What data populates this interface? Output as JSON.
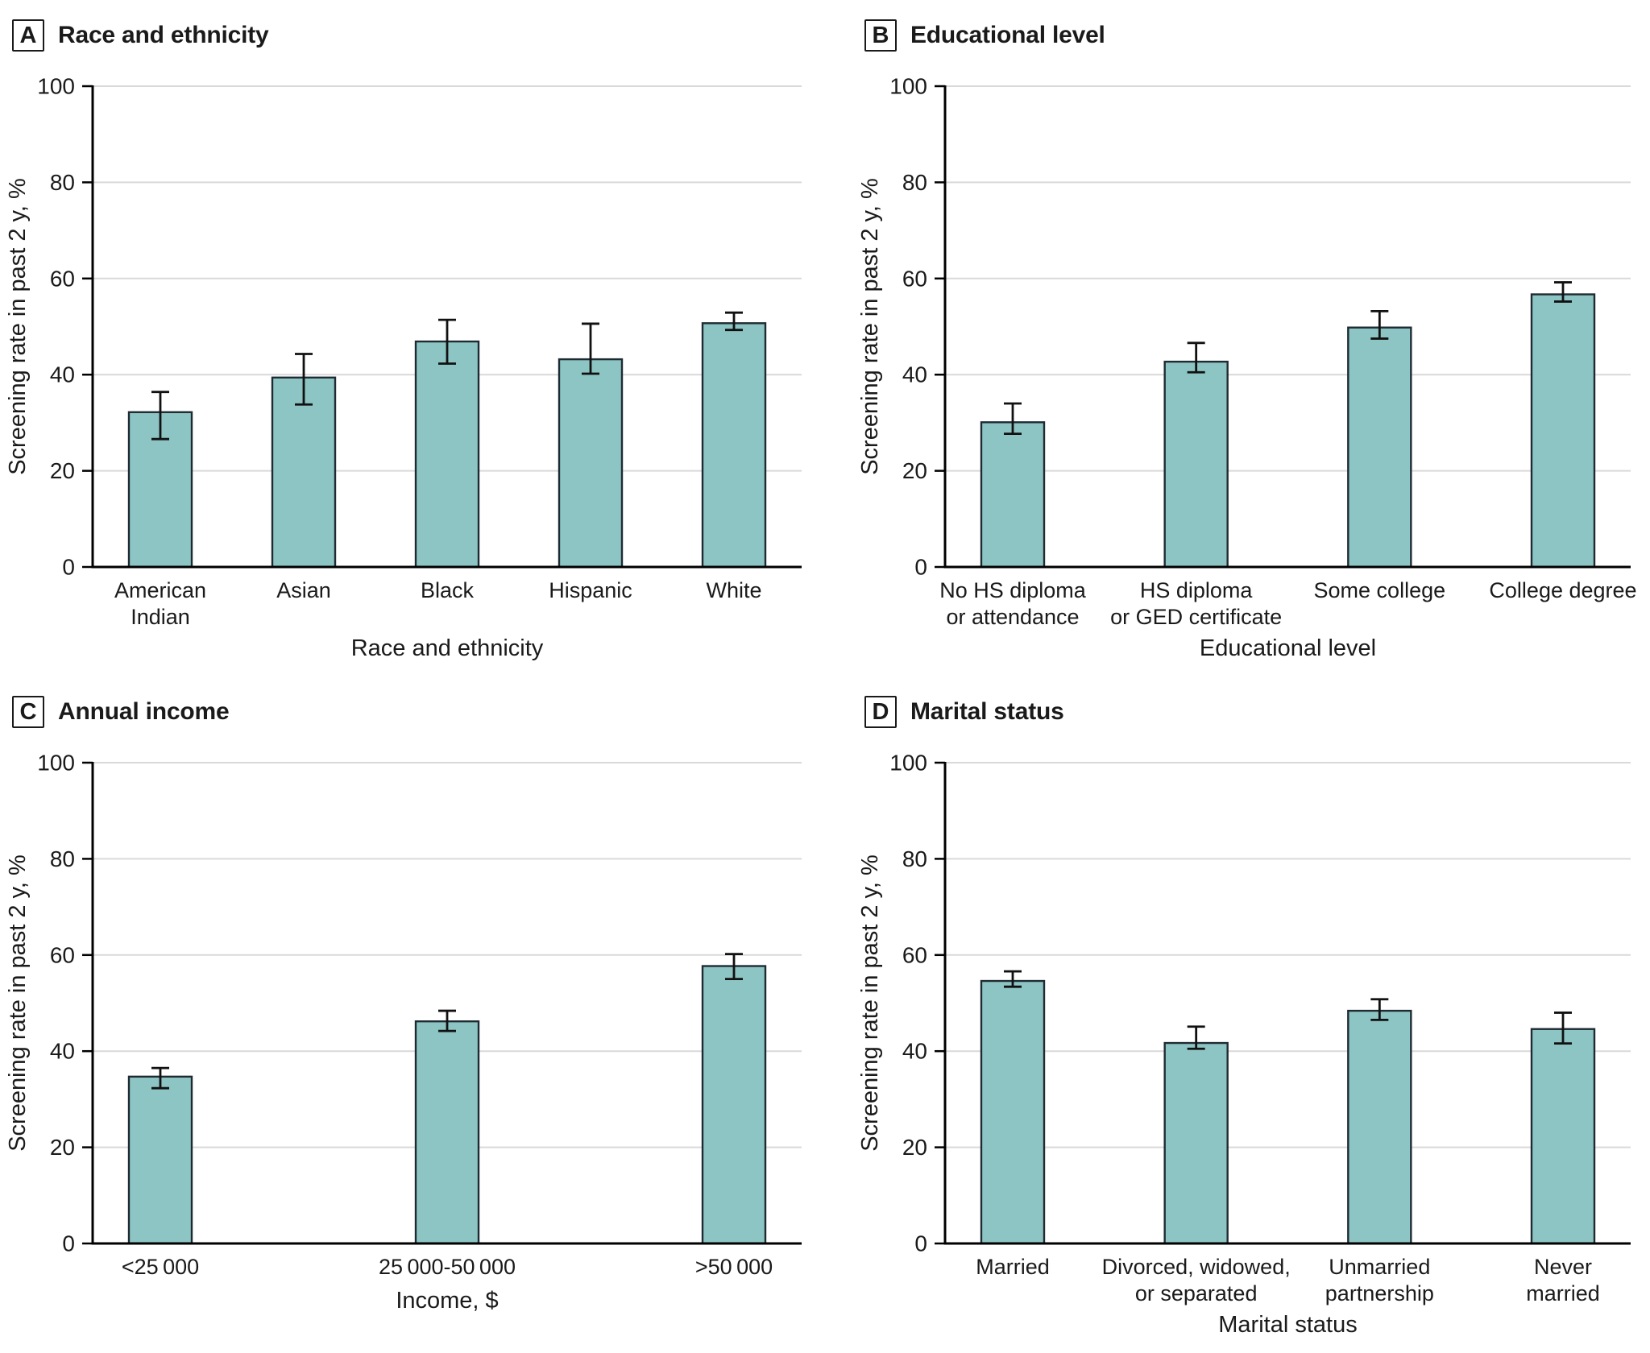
{
  "figure": {
    "background": "#FFFFFF",
    "shared_y_axis_title": "Screening rate in past 2 y, %"
  },
  "colors": {
    "bar_fill": "#8CC5C3",
    "bar_stroke": "#1F2B33",
    "error_bar": "#111111",
    "gridline": "#D9D9D9",
    "axis": "#000000",
    "text": "#1A1A1A"
  },
  "chart_data": [
    {
      "type": "bar",
      "panel_letter": "A",
      "title": "Race and ethnicity",
      "xlabel": "Race and ethnicity",
      "ylabel": "Screening rate in past 2 y, %",
      "ylim": [
        0,
        100
      ],
      "yticks": [
        0,
        20,
        40,
        60,
        80,
        100
      ],
      "grid": "horizontal",
      "legend": "none",
      "categories": [
        [
          "American",
          "Indian"
        ],
        [
          "Asian"
        ],
        [
          "Black"
        ],
        [
          "Hispanic"
        ],
        [
          "White"
        ]
      ],
      "values": [
        32.2,
        39.4,
        46.9,
        43.2,
        50.7
      ],
      "ci_low": [
        26.6,
        33.8,
        42.3,
        40.2,
        49.3
      ],
      "ci_high": [
        36.4,
        44.3,
        51.4,
        50.6,
        52.9
      ]
    },
    {
      "type": "bar",
      "panel_letter": "B",
      "title": "Educational level",
      "xlabel": "Educational level",
      "ylabel": "Screening rate in past 2 y, %",
      "ylim": [
        0,
        100
      ],
      "yticks": [
        0,
        20,
        40,
        60,
        80,
        100
      ],
      "grid": "horizontal",
      "legend": "none",
      "categories": [
        [
          "No HS diploma",
          "or attendance"
        ],
        [
          "HS diploma",
          "or GED certificate"
        ],
        [
          "Some college"
        ],
        [
          "College degree"
        ]
      ],
      "values": [
        30.1,
        42.7,
        49.8,
        56.7
      ],
      "ci_low": [
        27.7,
        40.5,
        47.5,
        55.2
      ],
      "ci_high": [
        34.0,
        46.6,
        53.2,
        59.2
      ]
    },
    {
      "type": "bar",
      "panel_letter": "C",
      "title": "Annual income",
      "xlabel": "Income, $",
      "ylabel": "Screening rate in past 2 y, %",
      "ylim": [
        0,
        100
      ],
      "yticks": [
        0,
        20,
        40,
        60,
        80,
        100
      ],
      "grid": "horizontal",
      "legend": "none",
      "categories": [
        [
          "<25 000"
        ],
        [
          "25 000-50 000"
        ],
        [
          ">50 000"
        ]
      ],
      "values": [
        34.7,
        46.2,
        57.7
      ],
      "ci_low": [
        32.3,
        44.2,
        55.0
      ],
      "ci_high": [
        36.5,
        48.4,
        60.2
      ]
    },
    {
      "type": "bar",
      "panel_letter": "D",
      "title": "Marital status",
      "xlabel": "Marital status",
      "ylabel": "Screening rate in past 2 y, %",
      "ylim": [
        0,
        100
      ],
      "yticks": [
        0,
        20,
        40,
        60,
        80,
        100
      ],
      "grid": "horizontal",
      "legend": "none",
      "categories": [
        [
          "Married"
        ],
        [
          "Divorced, widowed,",
          "or separated"
        ],
        [
          "Unmarried",
          "partnership"
        ],
        [
          "Never",
          "married"
        ]
      ],
      "values": [
        54.6,
        41.7,
        48.4,
        44.6
      ],
      "ci_low": [
        53.4,
        40.5,
        46.5,
        41.6
      ],
      "ci_high": [
        56.6,
        45.1,
        50.8,
        48.0
      ]
    }
  ]
}
